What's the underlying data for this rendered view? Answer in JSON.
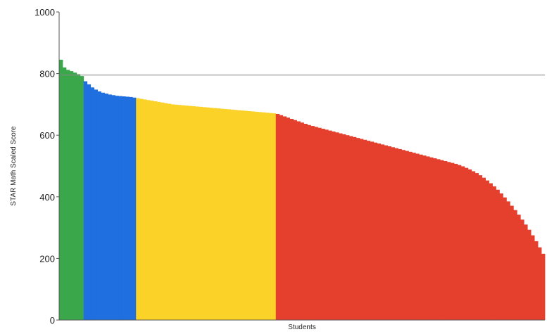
{
  "chart_data": {
    "type": "bar",
    "xlabel": "Students",
    "ylabel": "STAR Math Scaled Score",
    "ylim": [
      0,
      1000
    ],
    "yticks": [
      0,
      200,
      400,
      600,
      800,
      1000
    ],
    "ytick_labels": [
      "0",
      "200",
      "400",
      "600",
      "800",
      "1000"
    ],
    "reference_line": {
      "y": 795,
      "color": "#888888"
    },
    "grid": false,
    "legend": "none",
    "series": [
      {
        "color": "#3aa84a",
        "values": [
          845,
          820,
          812,
          808,
          803,
          798,
          792
        ]
      },
      {
        "color": "#1f6fe0",
        "values": [
          775,
          765,
          755,
          748,
          742,
          738,
          735,
          732,
          730,
          728,
          727,
          726,
          725,
          724,
          722
        ]
      },
      {
        "color": "#fad228",
        "values": [
          720,
          718,
          716,
          714,
          712,
          710,
          708,
          706,
          704,
          702,
          700,
          699,
          698,
          697,
          696,
          695,
          694,
          693,
          692,
          691,
          690,
          689,
          688,
          687,
          686,
          685,
          684,
          683,
          682,
          681,
          680,
          679,
          678,
          677,
          676,
          675,
          674,
          673,
          672,
          671
        ]
      },
      {
        "color": "#e5402d",
        "values": [
          669,
          665,
          661,
          657,
          653,
          649,
          645,
          641,
          637,
          633,
          630,
          627,
          624,
          621,
          618,
          615,
          612,
          609,
          606,
          603,
          600,
          597,
          594,
          591,
          588,
          585,
          582,
          579,
          576,
          573,
          570,
          567,
          564,
          561,
          558,
          555,
          552,
          549,
          546,
          543,
          540,
          537,
          534,
          531,
          528,
          525,
          522,
          519,
          516,
          513,
          510,
          507,
          503,
          499,
          494,
          489,
          483,
          477,
          470,
          462,
          453,
          444,
          434,
          423,
          411,
          398,
          385,
          371,
          357,
          342,
          326,
          310,
          293,
          275,
          256,
          236,
          215
        ]
      }
    ]
  }
}
